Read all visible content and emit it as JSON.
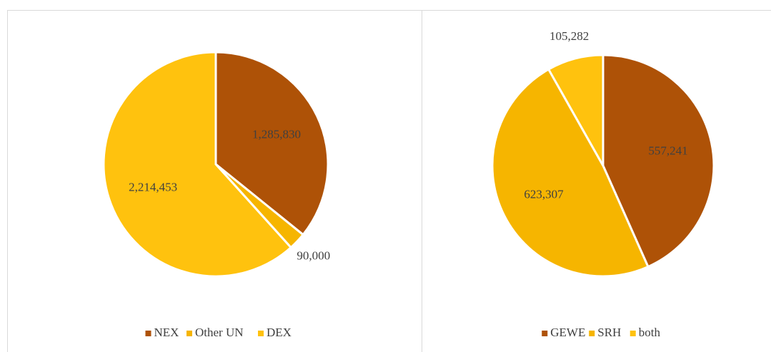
{
  "chart_data": [
    {
      "type": "pie",
      "categories": [
        "NEX",
        "Other UN",
        "DEX"
      ],
      "values": [
        1285830,
        90000,
        2214453
      ],
      "value_labels": [
        "1,285,830",
        "90,000",
        "2,214,453"
      ],
      "colors": [
        "#ae5207",
        "#f6b500",
        "#ffc20e"
      ],
      "legend": "bottom"
    },
    {
      "type": "pie",
      "categories": [
        "GEWE",
        "SRH",
        "both"
      ],
      "values": [
        557241,
        623307,
        105282
      ],
      "value_labels": [
        "557,241",
        "623,307",
        "105,282"
      ],
      "colors": [
        "#ae5207",
        "#f6b500",
        "#ffc20e"
      ],
      "legend": "bottom"
    }
  ]
}
